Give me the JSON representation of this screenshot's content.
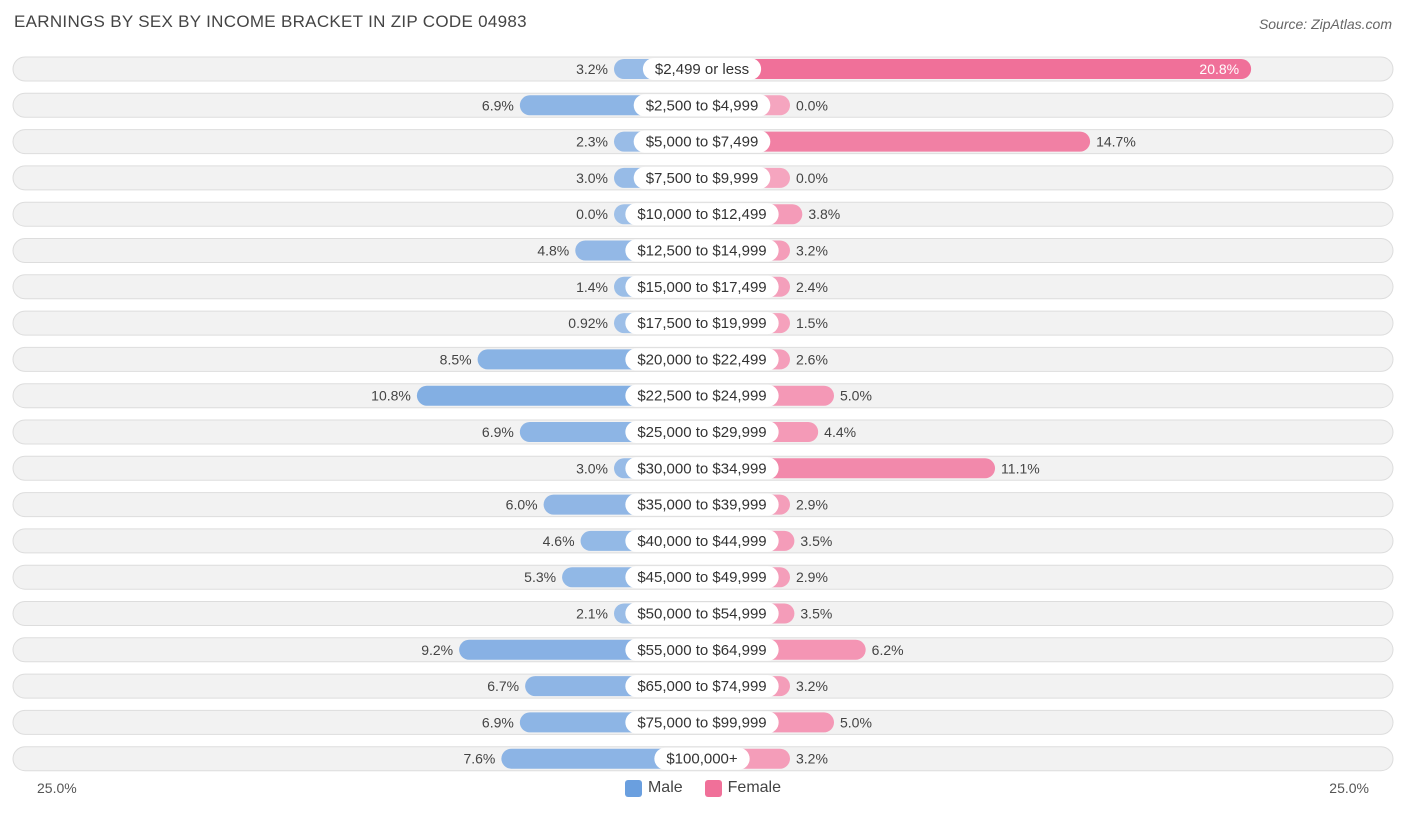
{
  "chart_data": {
    "type": "bar",
    "title": "EARNINGS BY SEX BY INCOME BRACKET IN ZIP CODE 04983",
    "source": "Source: ZipAtlas.com",
    "categories": [
      "$2,499 or less",
      "$2,500 to $4,999",
      "$5,000 to $7,499",
      "$7,500 to $9,999",
      "$10,000 to $12,499",
      "$12,500 to $14,999",
      "$15,000 to $17,499",
      "$17,500 to $19,999",
      "$20,000 to $22,499",
      "$22,500 to $24,999",
      "$25,000 to $29,999",
      "$30,000 to $34,999",
      "$35,000 to $39,999",
      "$40,000 to $44,999",
      "$45,000 to $49,999",
      "$50,000 to $54,999",
      "$55,000 to $64,999",
      "$65,000 to $74,999",
      "$75,000 to $99,999",
      "$100,000+"
    ],
    "series": [
      {
        "name": "Male",
        "values": [
          3.2,
          6.9,
          2.3,
          3.0,
          0.0,
          4.8,
          1.4,
          0.92,
          8.5,
          10.8,
          6.9,
          3.0,
          6.0,
          4.6,
          5.3,
          2.1,
          9.2,
          6.7,
          6.9,
          7.6
        ],
        "labels": [
          "3.2%",
          "6.9%",
          "2.3%",
          "3.0%",
          "0.0%",
          "4.8%",
          "1.4%",
          "0.92%",
          "8.5%",
          "10.8%",
          "6.9%",
          "3.0%",
          "6.0%",
          "4.6%",
          "5.3%",
          "2.1%",
          "9.2%",
          "6.7%",
          "6.9%",
          "7.6%"
        ]
      },
      {
        "name": "Female",
        "values": [
          20.8,
          0.0,
          14.7,
          0.0,
          3.8,
          3.2,
          2.4,
          1.5,
          2.6,
          5.0,
          4.4,
          11.1,
          2.9,
          3.5,
          2.9,
          3.5,
          6.2,
          3.2,
          5.0,
          3.2
        ],
        "labels": [
          "20.8%",
          "0.0%",
          "14.7%",
          "0.0%",
          "3.8%",
          "3.2%",
          "2.4%",
          "1.5%",
          "2.6%",
          "5.0%",
          "4.4%",
          "11.1%",
          "2.9%",
          "3.5%",
          "2.9%",
          "3.5%",
          "6.2%",
          "3.2%",
          "5.0%",
          "3.2%"
        ]
      }
    ],
    "xlim": [
      -25.0,
      25.0
    ],
    "axis_left_label": "25.0%",
    "axis_right_label": "25.0%",
    "legend_position": "bottom-center",
    "colors": {
      "male_light": "#9fc0e8",
      "male_dark": "#6a9fdf",
      "female_light": "#f5a5bf",
      "female_dark": "#f07099",
      "row_bg": "#f2f2f2",
      "row_border": "#dddddd"
    }
  }
}
